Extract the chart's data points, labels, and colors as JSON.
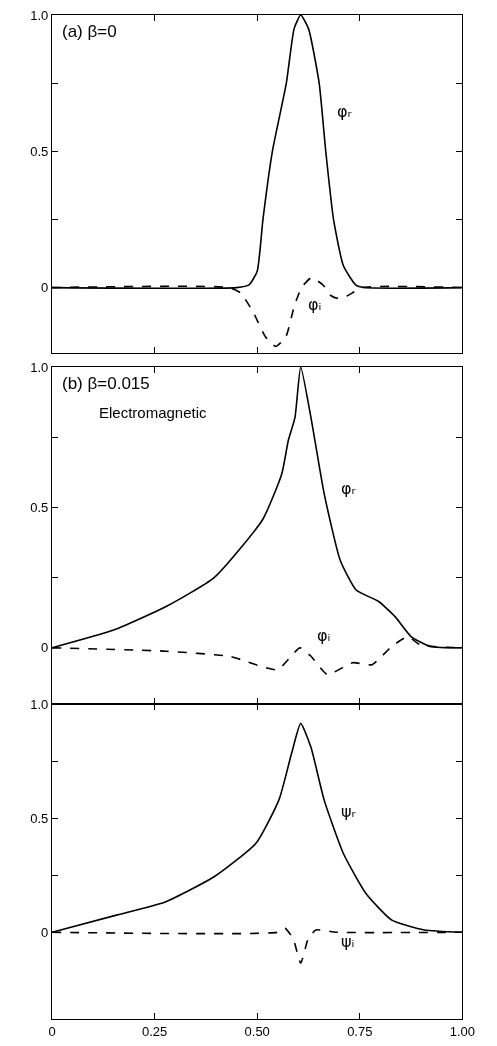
{
  "chart_data": [
    {
      "type": "line",
      "title": "(a) β=0",
      "xlim": [
        0,
        1
      ],
      "ylim": [
        -0.24,
        1
      ],
      "tick_labels": "y",
      "xticks": [
        {
          "value": 0,
          "label": null
        },
        {
          "value": 0.25,
          "label": null
        },
        {
          "value": 0.5,
          "label": null
        },
        {
          "value": 0.75,
          "label": null
        },
        {
          "value": 1,
          "label": null
        }
      ],
      "yticks": [
        0,
        {
          "value": 0.25,
          "label": null
        },
        0.5,
        {
          "value": 0.75,
          "label": null
        },
        {
          "value": 1,
          "label": "1.0"
        }
      ],
      "series": [
        {
          "color": "#000000",
          "line_style": "solid",
          "x": [
            0,
            0.45,
            0.48,
            0.5,
            0.514,
            0.537,
            0.571,
            0.59,
            0.606,
            0.625,
            0.651,
            0.667,
            0.686,
            0.71,
            0.74,
            0.76,
            1
          ],
          "values": [
            0,
            0,
            0.01,
            0.06,
            0.25,
            0.5,
            0.75,
            0.95,
            1.0,
            0.95,
            0.75,
            0.5,
            0.25,
            0.08,
            0.01,
            0,
            0
          ]
        },
        {
          "color": "#000000",
          "line_style": "dashed",
          "x": [
            0,
            0.43,
            0.46,
            0.49,
            0.52,
            0.545,
            0.57,
            0.59,
            0.608,
            0.632,
            0.66,
            0.68,
            0.698,
            0.72,
            0.757,
            1
          ],
          "values": [
            0,
            0,
            -0.02,
            -0.09,
            -0.18,
            -0.216,
            -0.18,
            -0.07,
            0,
            0.036,
            0.01,
            -0.03,
            -0.04,
            -0.03,
            0,
            0
          ]
        }
      ],
      "annotations": [
        "φᵣ",
        "φᵢ"
      ]
    },
    {
      "type": "line",
      "title": "(b) β=0.015",
      "subtitle": "Electromagnetic",
      "xlim": [
        0,
        1
      ],
      "ylim": [
        -0.2,
        1
      ],
      "tick_labels": "y",
      "xticks": [
        {
          "value": 0,
          "label": null
        },
        {
          "value": 0.25,
          "label": null
        },
        {
          "value": 0.5,
          "label": null
        },
        {
          "value": 0.75,
          "label": null
        },
        {
          "value": 1,
          "label": null
        }
      ],
      "yticks": [
        0,
        {
          "value": 0.25,
          "label": null
        },
        0.5,
        {
          "value": 0.75,
          "label": null
        },
        {
          "value": 1,
          "label": "1.0"
        }
      ],
      "series": [
        {
          "color": "#000000",
          "line_style": "solid",
          "x": [
            0,
            0.152,
            0.278,
            0.395,
            0.513,
            0.56,
            0.576,
            0.592,
            0.606,
            0.631,
            0.663,
            0.702,
            0.741,
            0.796,
            0.836,
            0.875,
            0.922,
            1
          ],
          "values": [
            0,
            0.064,
            0.147,
            0.25,
            0.456,
            0.62,
            0.74,
            0.82,
            1.0,
            0.82,
            0.55,
            0.313,
            0.206,
            0.165,
            0.111,
            0.04,
            0.005,
            0
          ]
        },
        {
          "color": "#000000",
          "line_style": "dashed",
          "x": [
            0,
            0.278,
            0.435,
            0.549,
            0.604,
            0.631,
            0.671,
            0.733,
            0.78,
            0.828,
            0.867,
            0.898,
            1
          ],
          "values": [
            0,
            -0.012,
            -0.031,
            -0.078,
            0,
            -0.03,
            -0.095,
            -0.053,
            -0.06,
            0.005,
            0.04,
            0.01,
            0
          ]
        }
      ],
      "annotations": [
        "φᵣ",
        "φᵢ"
      ]
    },
    {
      "type": "line",
      "xlim": [
        0,
        1
      ],
      "ylim": [
        -0.38,
        1
      ],
      "xticks": [
        0,
        0.25,
        {
          "value": 0.5,
          "label": "0.50"
        },
        0.75,
        {
          "value": 1,
          "label": "1.00"
        }
      ],
      "yticks": [
        0,
        {
          "value": 0.25,
          "label": null
        },
        0.5,
        {
          "value": 0.75,
          "label": null
        },
        {
          "value": 1,
          "label": "1.0"
        }
      ],
      "series": [
        {
          "color": "#000000",
          "line_style": "solid",
          "x": [
            0,
            0.157,
            0.276,
            0.395,
            0.497,
            0.553,
            0.584,
            0.606,
            0.631,
            0.663,
            0.71,
            0.765,
            0.828,
            0.907,
            1
          ],
          "values": [
            0,
            0.075,
            0.133,
            0.243,
            0.39,
            0.58,
            0.785,
            0.915,
            0.81,
            0.58,
            0.345,
            0.17,
            0.053,
            0.01,
            0
          ]
        },
        {
          "color": "#000000",
          "line_style": "dashed",
          "x": [
            0,
            0.55,
            0.568,
            0.588,
            0.606,
            0.624,
            0.643,
            0.694,
            1
          ],
          "values": [
            0,
            0,
            0.017,
            -0.03,
            -0.136,
            -0.03,
            0.01,
            0,
            0
          ]
        }
      ],
      "annotations": [
        "ψᵣ",
        "ψᵢ"
      ]
    }
  ]
}
